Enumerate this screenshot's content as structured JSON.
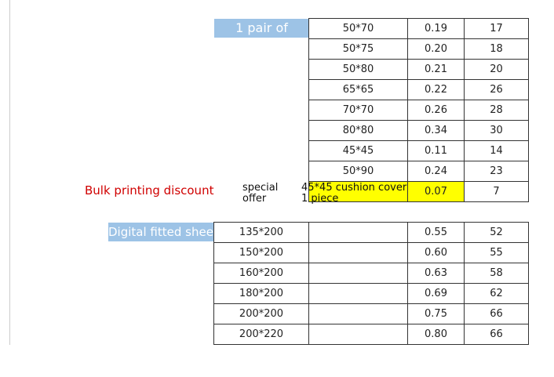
{
  "label_pair": "1 pair of",
  "label_bulk": "Bulk printing discount",
  "label_special": "special offer",
  "label_fitted": "Digital fitted sheet",
  "pillow_table": {
    "rows": [
      [
        "50*70",
        "0.19",
        "17"
      ],
      [
        "50*75",
        "0.20",
        "18"
      ],
      [
        "50*80",
        "0.21",
        "20"
      ],
      [
        "65*65",
        "0.22",
        "26"
      ],
      [
        "70*70",
        "0.26",
        "28"
      ],
      [
        "80*80",
        "0.34",
        "30"
      ],
      [
        "45*45",
        "0.11",
        "14"
      ],
      [
        "50*90",
        "0.24",
        "23"
      ]
    ]
  },
  "special_row": {
    "item": "45*45 cushion cover 1 piece",
    "price": "0.07",
    "qty": "7"
  },
  "sheet_table": {
    "rows": [
      [
        "135*200",
        "0.55",
        "52"
      ],
      [
        "150*200",
        "0.60",
        "55"
      ],
      [
        "160*200",
        "0.63",
        "58"
      ],
      [
        "180*200",
        "0.69",
        "62"
      ],
      [
        "200*200",
        "0.75",
        "66"
      ],
      [
        "200*220",
        "0.80",
        "66"
      ]
    ]
  }
}
